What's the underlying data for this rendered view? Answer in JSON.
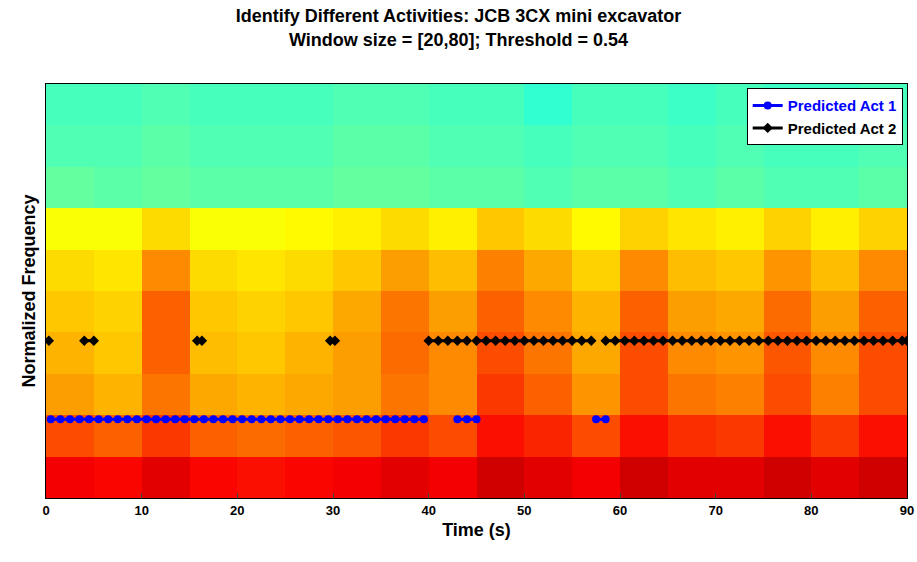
{
  "chart_data": {
    "type": "scatter",
    "title": "Identify Different Activities: JCB 3CX mini excavator",
    "subtitle": "Window size = [20,80]; Threshold = 0.54",
    "x_label": "Time (s)",
    "y_label": "Normalized Frequency",
    "xlim": [
      0,
      90
    ],
    "xticks": [
      0,
      10,
      20,
      30,
      40,
      50,
      60,
      70,
      80,
      90
    ],
    "ylim": [
      0,
      1
    ],
    "tick_labels": "x",
    "grid": false,
    "legend": "upper right",
    "heatmap": {
      "x": [
        2.5,
        7.5,
        12.5,
        17.5,
        22.5,
        27.5,
        32.5,
        37.5,
        42.5,
        47.5,
        52.5,
        57.5,
        62.5,
        67.5,
        72.5,
        77.5,
        82.5,
        87.5
      ],
      "y": [
        0.05,
        0.15,
        0.25,
        0.35,
        0.45,
        0.55,
        0.65,
        0.75,
        0.85,
        0.95
      ],
      "zlim": [
        0,
        1
      ],
      "z": [
        [
          0.88,
          0.87,
          0.9,
          0.87,
          0.86,
          0.87,
          0.88,
          0.9,
          0.88,
          0.92,
          0.9,
          0.88,
          0.92,
          0.9,
          0.9,
          0.92,
          0.9,
          0.92
        ],
        [
          0.8,
          0.78,
          0.82,
          0.78,
          0.77,
          0.78,
          0.79,
          0.82,
          0.8,
          0.86,
          0.84,
          0.8,
          0.86,
          0.83,
          0.82,
          0.86,
          0.82,
          0.86
        ],
        [
          0.72,
          0.7,
          0.76,
          0.71,
          0.7,
          0.71,
          0.72,
          0.76,
          0.74,
          0.82,
          0.78,
          0.73,
          0.8,
          0.76,
          0.75,
          0.8,
          0.75,
          0.8
        ],
        [
          0.7,
          0.68,
          0.78,
          0.69,
          0.68,
          0.7,
          0.72,
          0.77,
          0.74,
          0.8,
          0.76,
          0.71,
          0.8,
          0.74,
          0.73,
          0.79,
          0.74,
          0.8
        ],
        [
          0.68,
          0.67,
          0.78,
          0.68,
          0.67,
          0.68,
          0.71,
          0.76,
          0.72,
          0.78,
          0.74,
          0.7,
          0.78,
          0.72,
          0.71,
          0.77,
          0.72,
          0.78
        ],
        [
          0.66,
          0.65,
          0.74,
          0.66,
          0.65,
          0.66,
          0.68,
          0.72,
          0.69,
          0.75,
          0.71,
          0.67,
          0.74,
          0.69,
          0.68,
          0.73,
          0.69,
          0.74
        ],
        [
          0.62,
          0.62,
          0.66,
          0.62,
          0.62,
          0.63,
          0.64,
          0.66,
          0.64,
          0.68,
          0.66,
          0.63,
          0.67,
          0.65,
          0.64,
          0.67,
          0.64,
          0.67
        ],
        [
          0.47,
          0.46,
          0.47,
          0.46,
          0.46,
          0.46,
          0.47,
          0.47,
          0.46,
          0.46,
          0.45,
          0.46,
          0.46,
          0.45,
          0.46,
          0.45,
          0.45,
          0.46
        ],
        [
          0.45,
          0.45,
          0.46,
          0.45,
          0.45,
          0.45,
          0.46,
          0.46,
          0.45,
          0.45,
          0.44,
          0.45,
          0.45,
          0.44,
          0.45,
          0.44,
          0.44,
          0.45
        ],
        [
          0.44,
          0.44,
          0.45,
          0.44,
          0.44,
          0.44,
          0.45,
          0.45,
          0.44,
          0.44,
          0.42,
          0.44,
          0.44,
          0.43,
          0.44,
          0.43,
          0.43,
          0.44
        ]
      ]
    },
    "series": [
      {
        "name": "Predicted Act 1",
        "color": "#0000ff",
        "marker": "circle",
        "x": [
          0.5,
          1.5,
          2.5,
          3.5,
          4.5,
          5.5,
          6.5,
          7.5,
          8.5,
          9.5,
          10.5,
          11.5,
          12.5,
          13.5,
          14.5,
          15.5,
          16.5,
          17.5,
          18.5,
          19.5,
          20.5,
          21.5,
          22.5,
          23.5,
          24.5,
          25.5,
          26.5,
          27.5,
          28.5,
          29.5,
          30.5,
          31.5,
          32.5,
          33.5,
          34.5,
          35.5,
          36.5,
          37.5,
          38.5,
          39.5,
          null,
          43,
          44,
          45,
          null,
          57.5,
          58.5
        ],
        "values": [
          0.19,
          0.19,
          0.19,
          0.19,
          0.19,
          0.19,
          0.19,
          0.19,
          0.19,
          0.19,
          0.19,
          0.19,
          0.19,
          0.19,
          0.19,
          0.19,
          0.19,
          0.19,
          0.19,
          0.19,
          0.19,
          0.19,
          0.19,
          0.19,
          0.19,
          0.19,
          0.19,
          0.19,
          0.19,
          0.19,
          0.19,
          0.19,
          0.19,
          0.19,
          0.19,
          0.19,
          0.19,
          0.19,
          0.19,
          0.19,
          null,
          0.19,
          0.19,
          0.19,
          null,
          0.19,
          0.19
        ]
      },
      {
        "name": "Predicted Act 2",
        "color": "#000000",
        "marker": "diamond",
        "x": [
          0.3,
          null,
          4,
          5,
          null,
          15.8,
          16.3,
          null,
          29.7,
          30.2,
          null,
          40,
          41,
          42,
          43,
          44,
          null,
          45,
          46,
          47,
          48,
          49,
          50,
          51,
          52,
          53,
          54,
          55,
          56,
          57,
          null,
          58.5,
          59.5,
          60.5,
          61.5,
          62.5,
          63.5,
          64.5,
          65.5,
          66.5,
          67.5,
          68.5,
          69.5,
          70.5,
          71.5,
          72.5,
          73.5,
          74.5,
          75.5,
          76.5,
          77.5,
          78.5,
          79.5,
          80.5,
          81.5,
          82.5,
          83.5,
          84.5,
          85.5,
          86.5,
          87.5,
          88.5,
          89.5,
          90
        ],
        "values": [
          0.38,
          null,
          0.38,
          0.38,
          null,
          0.38,
          0.38,
          null,
          0.38,
          0.38,
          null,
          0.38,
          0.38,
          0.38,
          0.38,
          0.38,
          null,
          0.38,
          0.38,
          0.38,
          0.38,
          0.38,
          0.38,
          0.38,
          0.38,
          0.38,
          0.38,
          0.38,
          0.38,
          0.38,
          null,
          0.38,
          0.38,
          0.38,
          0.38,
          0.38,
          0.38,
          0.38,
          0.38,
          0.38,
          0.38,
          0.38,
          0.38,
          0.38,
          0.38,
          0.38,
          0.38,
          0.38,
          0.38,
          0.38,
          0.38,
          0.38,
          0.38,
          0.38,
          0.38,
          0.38,
          0.38,
          0.38,
          0.38,
          0.38,
          0.38,
          0.38,
          0.38,
          0.38
        ]
      }
    ]
  }
}
